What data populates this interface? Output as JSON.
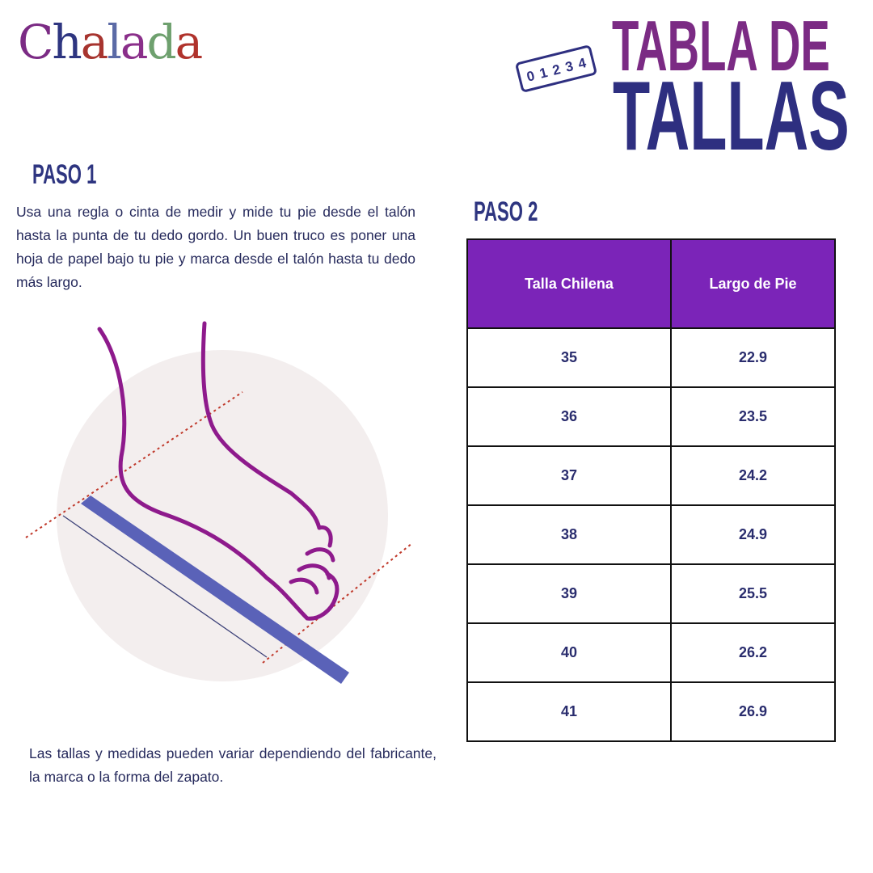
{
  "brand": {
    "logo_letters": [
      "C",
      "h",
      "a",
      "l",
      "a",
      "d",
      "a"
    ],
    "logo_colors": [
      "#7b2b84",
      "#2e3580",
      "#a7342f",
      "#5b6aa6",
      "#8a2f8a",
      "#6ea06e",
      "#b0332c"
    ]
  },
  "title": {
    "line1": "TABLA DE",
    "line2": "TALLAS",
    "ruler_numbers": "01234"
  },
  "step1": {
    "heading": "PASO 1",
    "text": "Usa una regla o cinta de medir y mide tu pie desde el talón hasta la punta de tu dedo gordo. Un buen truco es poner una hoja de papel bajo tu pie y marca desde el talón hasta tu dedo más largo."
  },
  "step2": {
    "heading": "PASO 2"
  },
  "table": {
    "headers": [
      "Talla Chilena",
      "Largo de Pie"
    ],
    "rows": [
      [
        "35",
        "22.9"
      ],
      [
        "36",
        "23.5"
      ],
      [
        "37",
        "24.2"
      ],
      [
        "38",
        "24.9"
      ],
      [
        "39",
        "25.5"
      ],
      [
        "40",
        "26.2"
      ],
      [
        "41",
        "26.9"
      ]
    ]
  },
  "note": "Las tallas y medidas pueden variar dependiendo del fabricante, la marca o la forma del zapato.",
  "colors": {
    "purple": "#7b2b84",
    "navy": "#2e2f80",
    "table_header": "#7b24b8",
    "foot": "#8e1a8c",
    "ruler": "#5a62b8"
  }
}
